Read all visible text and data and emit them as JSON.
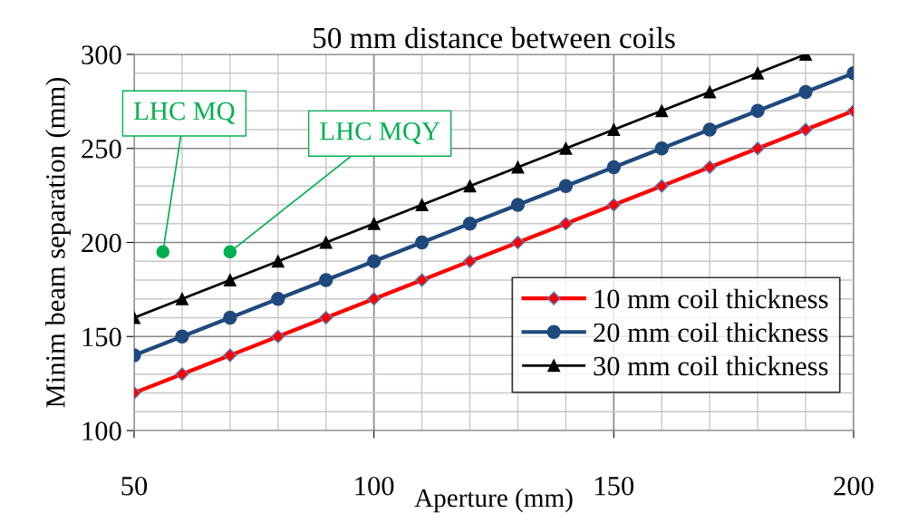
{
  "chart_data": {
    "type": "line",
    "title": "50 mm distance between coils",
    "xlabel": "Aperture (mm)",
    "ylabel": "Minim beam separation (mm)",
    "x": [
      50,
      60,
      70,
      80,
      90,
      100,
      110,
      120,
      130,
      140,
      150,
      160,
      170,
      180,
      190,
      200
    ],
    "series": [
      {
        "name": "10 mm coil thickness",
        "color": "#ff0000",
        "marker": "diamond",
        "values": [
          120,
          130,
          140,
          150,
          160,
          170,
          180,
          190,
          200,
          210,
          220,
          230,
          240,
          250,
          260,
          270
        ]
      },
      {
        "name": "20 mm coil thickness",
        "color": "#1f497d",
        "marker": "circle",
        "values": [
          140,
          150,
          160,
          170,
          180,
          190,
          200,
          210,
          220,
          230,
          240,
          250,
          260,
          270,
          280,
          290
        ]
      },
      {
        "name": "30 mm coil thickness",
        "color": "#000000",
        "marker": "triangle",
        "x": [
          50,
          60,
          70,
          80,
          90,
          100,
          110,
          120,
          130,
          140,
          150,
          160,
          170,
          180,
          190
        ],
        "values": [
          160,
          170,
          180,
          190,
          200,
          210,
          220,
          230,
          240,
          250,
          260,
          270,
          280,
          290,
          300
        ]
      },
      {
        "type": "scatter",
        "color": "#00b050",
        "marker": "circle",
        "x": [
          56,
          70
        ],
        "values": [
          195,
          195
        ]
      }
    ],
    "annotations": [
      {
        "text": "LHC MQ",
        "x": 56,
        "y": 195
      },
      {
        "text": "LHC MQY",
        "x": 70,
        "y": 195
      }
    ],
    "xlim": [
      50,
      200
    ],
    "xticks": [
      50,
      100,
      150,
      200
    ],
    "ylim": [
      100,
      300
    ],
    "yticks": [
      100,
      150,
      200,
      250,
      300
    ],
    "grid": true,
    "legend": "right"
  }
}
